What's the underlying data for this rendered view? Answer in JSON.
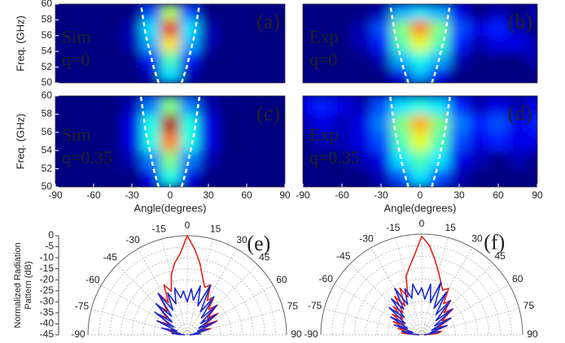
{
  "chart_data": [
    {
      "type": "heatmap",
      "panel_label": "(a)",
      "annotation": [
        "Sim",
        "q=0"
      ],
      "ylabel": "Freq. (GHz)",
      "colormap": "jet",
      "x": [
        -90,
        -75,
        -60,
        -45,
        -30,
        -15,
        0,
        15,
        30,
        45,
        60,
        75,
        90
      ],
      "y": [
        51,
        53,
        55,
        57,
        59
      ],
      "z": [
        [
          0,
          0,
          0,
          0,
          0,
          0.05,
          0.35,
          0.05,
          0,
          0,
          0,
          0,
          0
        ],
        [
          0,
          0,
          0,
          0,
          0,
          0.15,
          0.45,
          0.15,
          0,
          0,
          0,
          0,
          0
        ],
        [
          0,
          0,
          0,
          0,
          0.05,
          0.3,
          0.65,
          0.3,
          0.05,
          0,
          0,
          0,
          0
        ],
        [
          0,
          0,
          0,
          0,
          0.05,
          0.35,
          0.9,
          0.35,
          0.05,
          0,
          0,
          0,
          0
        ],
        [
          0,
          0,
          0,
          0,
          0,
          0.2,
          0.55,
          0.2,
          0,
          0,
          0,
          0,
          0
        ]
      ],
      "xlim": [
        -90,
        90
      ],
      "ylim": [
        50,
        60
      ],
      "yticks": [
        50,
        52,
        54,
        56,
        58,
        60
      ],
      "boundary": {
        "freq": [
          50,
          52,
          54,
          56,
          58,
          60
        ],
        "left": [
          -9,
          -13,
          -16,
          -19,
          -21,
          -23
        ],
        "right": [
          9,
          13,
          16,
          19,
          21,
          23
        ]
      }
    },
    {
      "type": "heatmap",
      "panel_label": "(b)",
      "annotation": [
        "Exp",
        "q=0"
      ],
      "colormap": "jet",
      "x": [
        -90,
        -75,
        -60,
        -45,
        -30,
        -15,
        0,
        15,
        30,
        45,
        60,
        75,
        90
      ],
      "y": [
        51,
        53,
        55,
        57,
        59
      ],
      "z": [
        [
          0,
          0,
          0,
          0,
          0,
          0.1,
          0.3,
          0.1,
          0,
          0,
          0,
          0,
          0
        ],
        [
          0,
          0,
          0,
          0,
          0.05,
          0.3,
          0.4,
          0.3,
          0.05,
          0,
          0,
          0,
          0.05
        ],
        [
          0,
          0,
          0,
          0.05,
          0.15,
          0.45,
          0.6,
          0.45,
          0.15,
          0.05,
          0.1,
          0.1,
          0.05
        ],
        [
          0,
          0,
          0,
          0.05,
          0.2,
          0.5,
          0.75,
          0.5,
          0.2,
          0.1,
          0.15,
          0.05,
          0
        ],
        [
          0,
          0,
          0,
          0,
          0.05,
          0.3,
          0.35,
          0.3,
          0.1,
          0,
          0.05,
          0,
          0.05
        ]
      ],
      "xlim": [
        -90,
        90
      ],
      "ylim": [
        50,
        60
      ],
      "boundary": {
        "freq": [
          50,
          52,
          54,
          56,
          58,
          60
        ],
        "left": [
          -9,
          -13,
          -16,
          -19,
          -21,
          -23
        ],
        "right": [
          9,
          13,
          16,
          19,
          21,
          23
        ]
      }
    },
    {
      "type": "heatmap",
      "panel_label": "(c)",
      "annotation": [
        "Sim",
        "q=0.35"
      ],
      "ylabel": "Freq. (GHz)",
      "xlabel": "Angle(degrees)",
      "colormap": "jet",
      "x": [
        -90,
        -75,
        -60,
        -45,
        -30,
        -15,
        0,
        15,
        30,
        45,
        60,
        75,
        90
      ],
      "y": [
        51,
        53,
        55,
        57,
        59
      ],
      "z": [
        [
          0,
          0,
          0,
          0,
          0,
          0.1,
          0.4,
          0.1,
          0,
          0,
          0,
          0,
          0
        ],
        [
          0,
          0,
          0,
          0,
          0.05,
          0.25,
          0.5,
          0.25,
          0.05,
          0,
          0,
          0,
          0
        ],
        [
          0,
          0,
          0,
          0,
          0.1,
          0.4,
          0.75,
          0.4,
          0.1,
          0,
          0,
          0,
          0
        ],
        [
          0,
          0,
          0,
          0,
          0.1,
          0.4,
          0.95,
          0.4,
          0.1,
          0,
          0,
          0,
          0
        ],
        [
          0,
          0,
          0,
          0,
          0.05,
          0.25,
          0.5,
          0.25,
          0.05,
          0,
          0,
          0,
          0
        ]
      ],
      "xlim": [
        -90,
        90
      ],
      "ylim": [
        50,
        60
      ],
      "yticks": [
        50,
        52,
        54,
        56,
        58,
        60
      ],
      "xticks": [
        -90,
        -60,
        -30,
        0,
        30,
        60,
        90
      ],
      "boundary": {
        "freq": [
          50,
          52,
          54,
          56,
          58,
          60
        ],
        "left": [
          -9,
          -13,
          -16,
          -19,
          -21,
          -23
        ],
        "right": [
          9,
          13,
          16,
          19,
          21,
          23
        ]
      }
    },
    {
      "type": "heatmap",
      "panel_label": "(d)",
      "annotation": [
        "Exp",
        "q=0.35"
      ],
      "xlabel": "Angle(degrees)",
      "colormap": "jet",
      "x": [
        -90,
        -75,
        -60,
        -45,
        -30,
        -15,
        0,
        15,
        30,
        45,
        60,
        75,
        90
      ],
      "y": [
        51,
        53,
        55,
        57,
        59
      ],
      "z": [
        [
          0,
          0,
          0,
          0,
          0.05,
          0.2,
          0.35,
          0.2,
          0.05,
          0,
          0,
          0,
          0
        ],
        [
          0,
          0,
          0,
          0.05,
          0.1,
          0.35,
          0.45,
          0.35,
          0.1,
          0.05,
          0,
          0.05,
          0
        ],
        [
          0,
          0.05,
          0.05,
          0.1,
          0.2,
          0.45,
          0.6,
          0.45,
          0.2,
          0.1,
          0.15,
          0.1,
          0.1
        ],
        [
          0.05,
          0.1,
          0.05,
          0.1,
          0.25,
          0.5,
          0.7,
          0.5,
          0.25,
          0.15,
          0.2,
          0.1,
          0.15
        ],
        [
          0.1,
          0.15,
          0.1,
          0.05,
          0.2,
          0.35,
          0.4,
          0.35,
          0.15,
          0.05,
          0.1,
          0.05,
          0.1
        ]
      ],
      "xlim": [
        -90,
        90
      ],
      "ylim": [
        50,
        60
      ],
      "xticks": [
        -90,
        -60,
        -30,
        0,
        30,
        60,
        90
      ],
      "boundary": {
        "freq": [
          50,
          52,
          54,
          56,
          58,
          60
        ],
        "left": [
          -9,
          -13,
          -16,
          -19,
          -21,
          -23
        ],
        "right": [
          9,
          13,
          16,
          19,
          21,
          23
        ]
      }
    },
    {
      "type": "polar",
      "panel_label": "(e)",
      "rlabel": [
        "Normalized Radiation",
        "Pattern (dB)"
      ],
      "theta": [
        -90,
        -85,
        -80,
        -75,
        -70,
        -65,
        -60,
        -55,
        -50,
        -45,
        -40,
        -35,
        -30,
        -25,
        -20,
        -15,
        -10,
        -5,
        0,
        5,
        10,
        15,
        20,
        25,
        30,
        35,
        40,
        45,
        50,
        55,
        60,
        65,
        70,
        75,
        80,
        85,
        90
      ],
      "series": [
        {
          "color": "#e3231c",
          "values": [
            -42,
            -40,
            -38,
            -35,
            -40,
            -30,
            -36,
            -28,
            -33,
            -26,
            -31,
            -22,
            -28,
            -20,
            -24,
            -17,
            -12,
            -8,
            0,
            -6,
            -12,
            -18,
            -22,
            -20,
            -27,
            -24,
            -30,
            -26,
            -33,
            -28,
            -36,
            -30,
            -38,
            -34,
            -40,
            -42,
            -44
          ]
        },
        {
          "color": "#1c2bc9",
          "values": [
            -44,
            -38,
            -42,
            -33,
            -40,
            -30,
            -38,
            -27,
            -36,
            -25,
            -34,
            -22,
            -32,
            -24,
            -30,
            -23,
            -28,
            -25,
            -30,
            -24,
            -29,
            -22,
            -31,
            -20,
            -33,
            -24,
            -35,
            -26,
            -37,
            -29,
            -39,
            -31,
            -40,
            -35,
            -42,
            -39,
            -44
          ]
        }
      ],
      "rlim": [
        -45,
        0
      ],
      "rticks": [
        0,
        -5,
        -10,
        -15,
        -20,
        -25,
        -30,
        -35,
        -40,
        -45
      ],
      "show_rtick_labels": true,
      "thetaticks": [
        -90,
        -75,
        -60,
        -45,
        -30,
        -15,
        0,
        15,
        30,
        45,
        60,
        75,
        90
      ]
    },
    {
      "type": "polar",
      "panel_label": "(f)",
      "theta": [
        -90,
        -85,
        -80,
        -75,
        -70,
        -65,
        -60,
        -55,
        -50,
        -45,
        -40,
        -35,
        -30,
        -25,
        -20,
        -15,
        -10,
        -5,
        0,
        5,
        10,
        15,
        20,
        25,
        30,
        35,
        40,
        45,
        50,
        55,
        60,
        65,
        70,
        75,
        80,
        85,
        90
      ],
      "series": [
        {
          "color": "#e3231c",
          "values": [
            -44,
            -36,
            -40,
            -34,
            -38,
            -31,
            -36,
            -29,
            -34,
            -27,
            -32,
            -24,
            -30,
            -22,
            -27,
            -18,
            -14,
            -9,
            -1,
            -5,
            -11,
            -16,
            -20,
            -23,
            -21,
            -28,
            -25,
            -31,
            -27,
            -34,
            -30,
            -37,
            -33,
            -40,
            -36,
            -38,
            -44
          ]
        },
        {
          "color": "#1c2bc9",
          "values": [
            -44,
            -40,
            -36,
            -41,
            -32,
            -38,
            -29,
            -36,
            -26,
            -34,
            -24,
            -31,
            -21,
            -30,
            -23,
            -28,
            -22,
            -27,
            -24,
            -29,
            -22,
            -30,
            -20,
            -32,
            -23,
            -34,
            -25,
            -36,
            -27,
            -38,
            -30,
            -40,
            -33,
            -41,
            -37,
            -43,
            -44
          ]
        }
      ],
      "rlim": [
        -45,
        0
      ],
      "rticks": [
        0,
        -5,
        -10,
        -15,
        -20,
        -25,
        -30,
        -35,
        -40,
        -45
      ],
      "show_rtick_labels": false,
      "thetaticks": [
        -90,
        -75,
        -60,
        -45,
        -30,
        -15,
        0,
        15,
        30,
        45,
        60,
        75,
        90
      ]
    }
  ]
}
